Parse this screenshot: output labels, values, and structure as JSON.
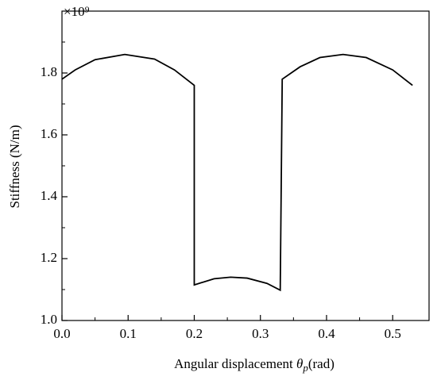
{
  "chart_data": {
    "type": "line",
    "xlabel": {
      "text": "Angular displacement ",
      "symbol": "θ",
      "subscript": "p",
      "unit": "(rad)"
    },
    "ylabel": "Stiffness (N/m)",
    "y_multiplier": "×10⁹",
    "x": [
      0,
      0.02,
      0.05,
      0.095,
      0.14,
      0.17,
      0.2,
      0.2,
      0.23,
      0.255,
      0.28,
      0.31,
      0.33,
      0.333,
      0.36,
      0.39,
      0.425,
      0.46,
      0.5,
      0.53
    ],
    "series": [
      {
        "color": "#000000",
        "values": [
          1.78,
          1.81,
          1.843,
          1.86,
          1.845,
          1.81,
          1.76,
          1.115,
          1.135,
          1.14,
          1.137,
          1.12,
          1.098,
          1.78,
          1.82,
          1.85,
          1.86,
          1.85,
          1.81,
          1.76
        ]
      }
    ],
    "xlim": [
      0,
      0.555
    ],
    "ylim": [
      1.0,
      2.0
    ],
    "xticks": [
      {
        "value": 0,
        "label": "0.0"
      },
      0.1,
      0.2,
      0.3,
      0.4,
      0.5
    ],
    "yticks": [
      {
        "value": 1,
        "label": "1.0"
      },
      1.2,
      1.4,
      1.6,
      1.8
    ],
    "xminorticks": [
      0.05,
      0.15,
      0.25,
      0.35,
      0.45
    ],
    "yminorticks": [
      1.1,
      1.3,
      1.5,
      1.7,
      1.9
    ]
  }
}
